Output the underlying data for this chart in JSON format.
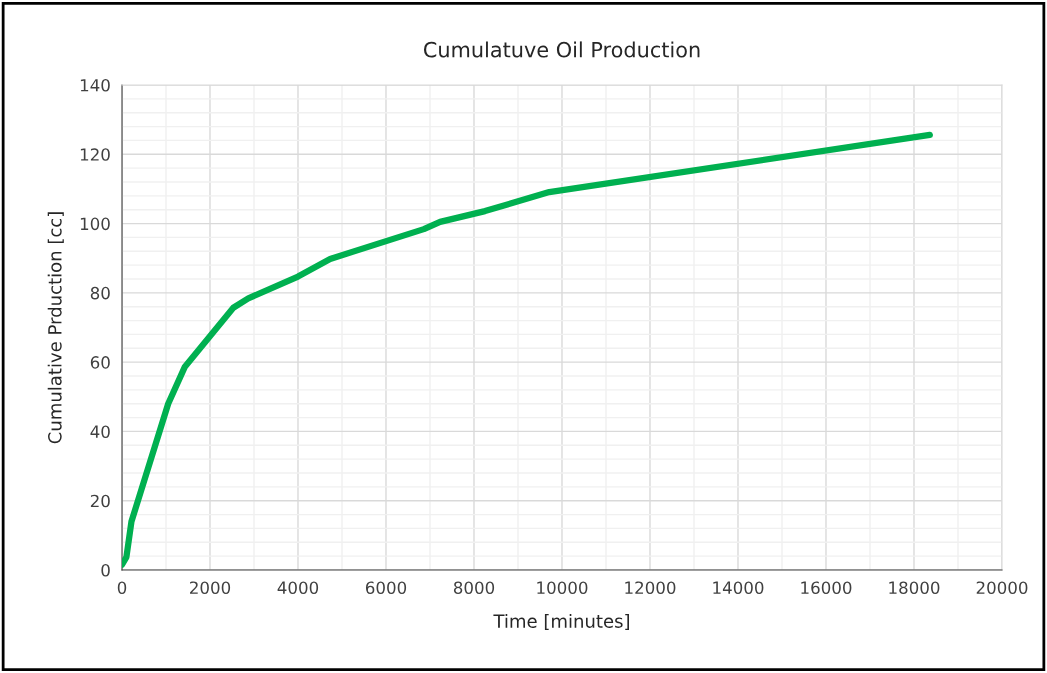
{
  "chart_data": {
    "type": "line",
    "title": "Cumulatuve Oil Production",
    "xlabel": "Time [minutes]",
    "ylabel": "Cumulative Prduction [cc]",
    "x": [
      0,
      100,
      215,
      1050,
      1430,
      2530,
      2870,
      4000,
      4730,
      6860,
      7230,
      8250,
      9710,
      18360
    ],
    "series": [
      {
        "color": "#00b050",
        "values": [
          1.5,
          3.7,
          14,
          48,
          58.7,
          75.7,
          78.4,
          84.7,
          89.8,
          98.4,
          100.5,
          103.6,
          109.1,
          125.6
        ]
      }
    ],
    "xlim": [
      0,
      20000
    ],
    "xticks": [
      0,
      2000,
      4000,
      6000,
      8000,
      10000,
      12000,
      14000,
      16000,
      18000,
      20000
    ],
    "ylim": [
      0,
      140
    ],
    "yticks": [
      0,
      20,
      40,
      60,
      80,
      100,
      120,
      140
    ],
    "grid": true,
    "legend": false,
    "marker": "none",
    "line_style": "solid"
  }
}
